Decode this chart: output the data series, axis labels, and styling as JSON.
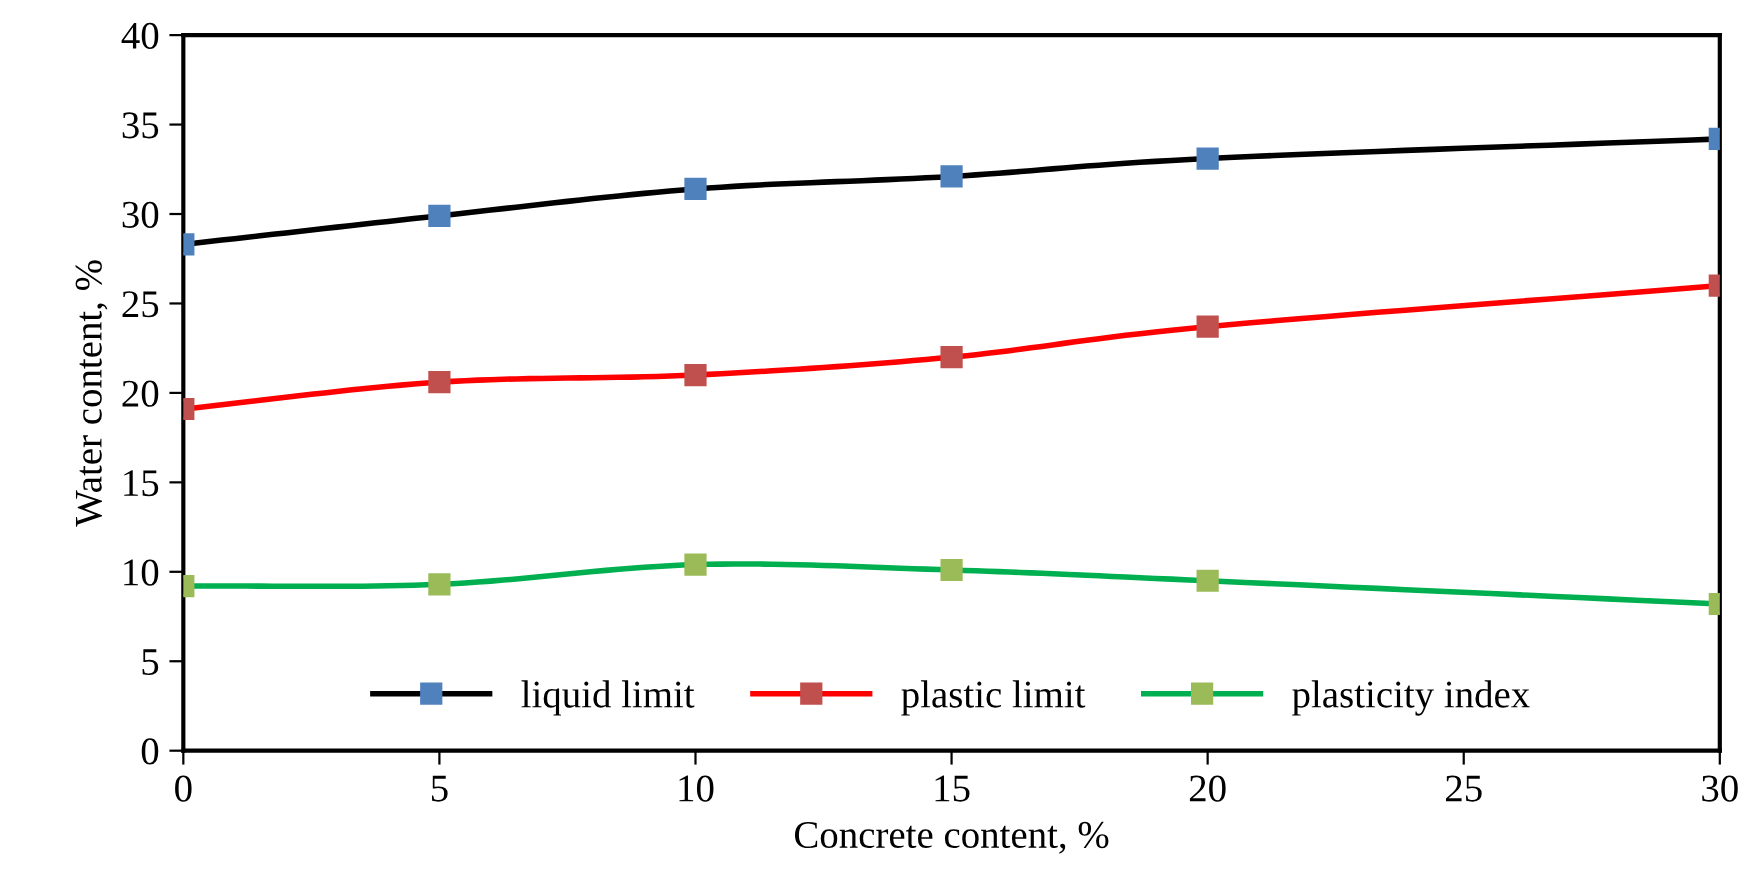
{
  "chart_data": {
    "type": "line",
    "xlabel": "Concrete content, %",
    "ylabel": "Water content, %",
    "x": [
      0,
      5,
      10,
      15,
      20,
      30
    ],
    "series": [
      {
        "name": "liquid limit",
        "color": "#000000",
        "colors": [
          "#4f81bd",
          "#4f81bd",
          "#4f81bd",
          "#4f81bd",
          "#4f81bd",
          "#4f81bd"
        ],
        "values": [
          28.3,
          29.9,
          31.4,
          32.1,
          33.1,
          34.2
        ]
      },
      {
        "name": "plastic limit",
        "color": "#ff0000",
        "colors": [
          "#c0504d",
          "#c0504d",
          "#c0504d",
          "#c0504d",
          "#c0504d",
          "#c0504d"
        ],
        "values": [
          19.1,
          20.6,
          21.0,
          22.0,
          23.7,
          26.0
        ]
      },
      {
        "name": "plasticity index",
        "color": "#00b050",
        "colors": [
          "#9bbb59",
          "#9bbb59",
          "#9bbb59",
          "#9bbb59",
          "#9bbb59",
          "#9bbb59"
        ],
        "values": [
          9.2,
          9.3,
          10.4,
          10.1,
          9.5,
          8.2
        ]
      }
    ],
    "xlim": [
      0,
      30
    ],
    "xticks": [
      0,
      5,
      10,
      15,
      20,
      25,
      30
    ],
    "ylim": [
      0,
      40
    ],
    "yticks": [
      0,
      5,
      10,
      15,
      20,
      25,
      30,
      35,
      40
    ],
    "grid": false,
    "legend": "bottom",
    "marker": "square",
    "line_style": "solid"
  }
}
